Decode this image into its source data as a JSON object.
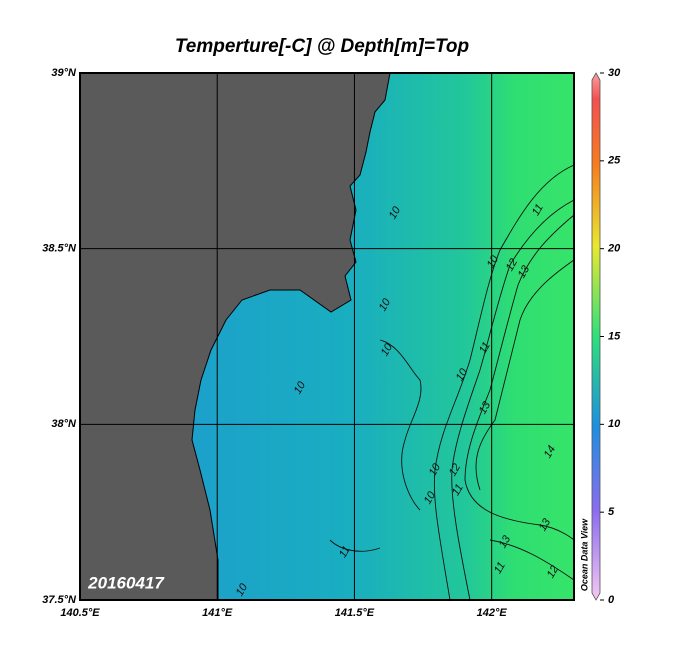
{
  "map": {
    "title": "Temperture[-C] @ Depth[m]=Top",
    "xlim": [
      140.5,
      142.3
    ],
    "ylim": [
      37.5,
      39
    ],
    "xticks": [
      {
        "value": 140.5,
        "label": "140.5°E"
      },
      {
        "value": 141,
        "label": "141°E"
      },
      {
        "value": 141.5,
        "label": "141.5°E"
      },
      {
        "value": 142,
        "label": "142°E"
      }
    ],
    "yticks": [
      {
        "value": 37.5,
        "label": "37.5°N"
      },
      {
        "value": 38,
        "label": "38°N"
      },
      {
        "value": 38.5,
        "label": "38.5°N"
      },
      {
        "value": 39,
        "label": "39°N"
      }
    ],
    "grid": true,
    "date_label": "20160417",
    "watermark": "Ocean Data View",
    "colorbar": {
      "clim": [
        0,
        30
      ],
      "ticks": [
        0,
        5,
        10,
        15,
        20,
        25,
        30
      ]
    },
    "contour_labels": [
      10,
      11,
      10,
      12,
      13,
      10,
      10,
      10,
      11,
      10,
      13,
      14,
      10,
      12,
      11,
      10,
      13,
      13,
      11,
      11,
      12,
      10
    ]
  }
}
